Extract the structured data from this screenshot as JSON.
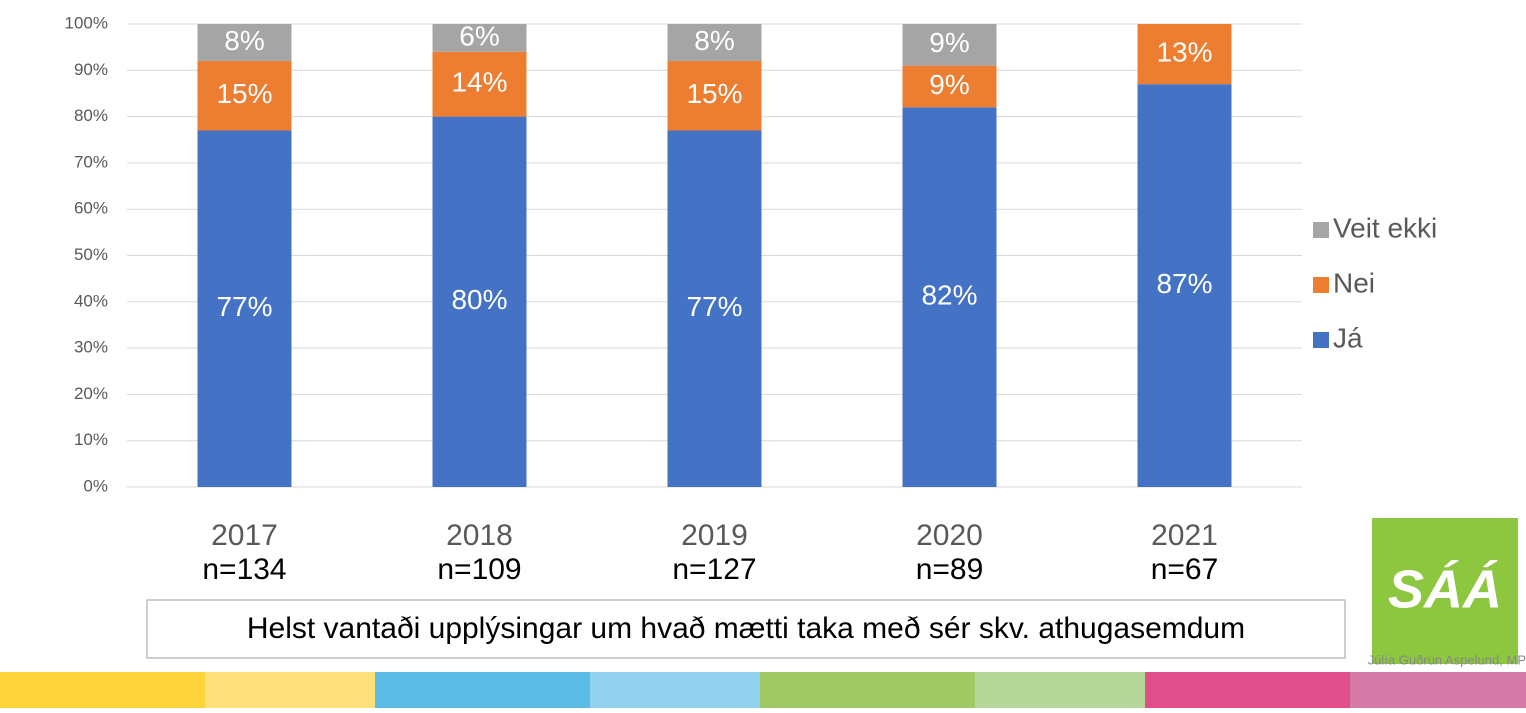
{
  "chart_data": {
    "type": "stacked_bar",
    "categories": [
      "2017",
      "2018",
      "2019",
      "2020",
      "2021"
    ],
    "category_notes": [
      "n=134",
      "n=109",
      "n=127",
      "n=89",
      "n=67"
    ],
    "series": [
      {
        "name": "Já",
        "color": "#4472c4",
        "values": [
          77,
          80,
          77,
          82,
          87
        ],
        "value_labels": [
          "77%",
          "80%",
          "77%",
          "82%",
          "87%"
        ]
      },
      {
        "name": "Nei",
        "color": "#ed7d31",
        "values": [
          15,
          14,
          15,
          9,
          13
        ],
        "value_labels": [
          "15%",
          "14%",
          "15%",
          "9%",
          "13%"
        ]
      },
      {
        "name": "Veit ekki",
        "color": "#a5a5a5",
        "values": [
          8,
          6,
          8,
          9,
          null
        ],
        "value_labels": [
          "8%",
          "6%",
          "8%",
          "9%",
          null
        ]
      }
    ],
    "ylim": [
      0,
      100
    ],
    "yticks": [
      {
        "value": 0,
        "label": "0%"
      },
      {
        "value": 10,
        "label": "10%"
      },
      {
        "value": 20,
        "label": "20%"
      },
      {
        "value": 30,
        "label": "30%"
      },
      {
        "value": 40,
        "label": "40%"
      },
      {
        "value": 50,
        "label": "50%"
      },
      {
        "value": 60,
        "label": "60%"
      },
      {
        "value": 70,
        "label": "70%"
      },
      {
        "value": 80,
        "label": "80%"
      },
      {
        "value": 90,
        "label": "90%"
      },
      {
        "value": 100,
        "label": "100%"
      }
    ],
    "grid": true,
    "legend": "right",
    "annotation": "Helst vantaði upplýsingar um hvað mætti taka með sér skv. athugasemdum"
  },
  "footer": {
    "author": "Júlía Guðrún Aspelund, MP",
    "logo": "SÁÁ"
  }
}
